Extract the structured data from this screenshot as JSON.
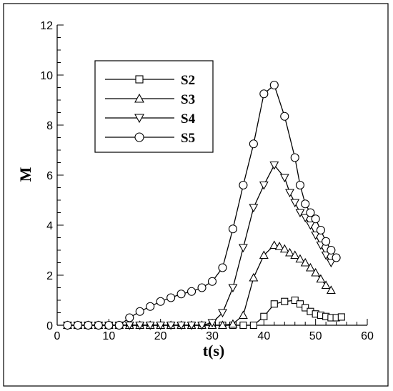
{
  "chart_data": {
    "type": "line",
    "title": "",
    "xlabel": "t(s)",
    "ylabel": "M",
    "xlim": [
      0,
      60
    ],
    "ylim": [
      0,
      12
    ],
    "xticks": [
      0,
      10,
      20,
      30,
      40,
      50,
      60
    ],
    "yticks": [
      0,
      2,
      4,
      6,
      8,
      10,
      12
    ],
    "grid": false,
    "legend": "top-left",
    "series": [
      {
        "name": "S2",
        "marker": "square",
        "x": [
          2,
          4,
          6,
          8,
          10,
          12,
          14,
          16,
          18,
          20,
          22,
          24,
          26,
          28,
          30,
          32,
          34,
          36,
          38,
          40,
          42,
          44,
          46,
          47,
          48,
          49,
          50,
          51,
          52,
          53,
          54,
          55
        ],
        "y": [
          0,
          0,
          0,
          0,
          0,
          0,
          0,
          0,
          0,
          0,
          0,
          0,
          0,
          0,
          0,
          0,
          0,
          0,
          0,
          0.35,
          0.85,
          0.95,
          1.0,
          0.85,
          0.7,
          0.55,
          0.45,
          0.4,
          0.35,
          0.3,
          0.3,
          0.33
        ]
      },
      {
        "name": "S3",
        "marker": "triangle-up",
        "x": [
          2,
          4,
          6,
          8,
          10,
          12,
          14,
          16,
          18,
          20,
          22,
          24,
          26,
          28,
          30,
          32,
          34,
          36,
          38,
          40,
          42,
          43,
          44,
          45,
          46,
          47,
          48,
          49,
          50,
          51,
          52,
          53
        ],
        "y": [
          0,
          0,
          0,
          0,
          0,
          0,
          0,
          0,
          0,
          0,
          0,
          0,
          0,
          0,
          0,
          0,
          0.05,
          0.4,
          1.9,
          2.8,
          3.2,
          3.15,
          3.05,
          2.9,
          2.8,
          2.65,
          2.5,
          2.3,
          2.1,
          1.85,
          1.6,
          1.4
        ]
      },
      {
        "name": "S4",
        "marker": "triangle-down",
        "x": [
          2,
          4,
          6,
          8,
          10,
          12,
          14,
          16,
          18,
          20,
          22,
          24,
          26,
          28,
          30,
          32,
          34,
          36,
          38,
          40,
          42,
          44,
          45,
          46,
          47,
          48,
          49,
          50,
          51,
          52,
          53
        ],
        "y": [
          0,
          0,
          0,
          0,
          0,
          0,
          0,
          0,
          0,
          0,
          0,
          0,
          0,
          0,
          0.1,
          0.5,
          1.5,
          3.1,
          4.7,
          5.6,
          6.4,
          5.9,
          5.3,
          4.9,
          4.5,
          4.3,
          4.0,
          3.6,
          3.2,
          2.8,
          2.5
        ]
      },
      {
        "name": "S5",
        "marker": "circle",
        "x": [
          2,
          4,
          6,
          8,
          10,
          12,
          14,
          16,
          18,
          20,
          22,
          24,
          26,
          28,
          30,
          32,
          34,
          36,
          38,
          40,
          42,
          44,
          46,
          47,
          48,
          49,
          50,
          51,
          52,
          53,
          54
        ],
        "y": [
          0,
          0,
          0,
          0,
          0,
          0,
          0.3,
          0.55,
          0.75,
          0.95,
          1.1,
          1.25,
          1.35,
          1.5,
          1.75,
          2.3,
          3.85,
          5.6,
          7.25,
          9.25,
          9.6,
          8.35,
          6.7,
          5.6,
          4.85,
          4.5,
          4.25,
          3.8,
          3.35,
          3.0,
          2.7
        ]
      }
    ]
  }
}
